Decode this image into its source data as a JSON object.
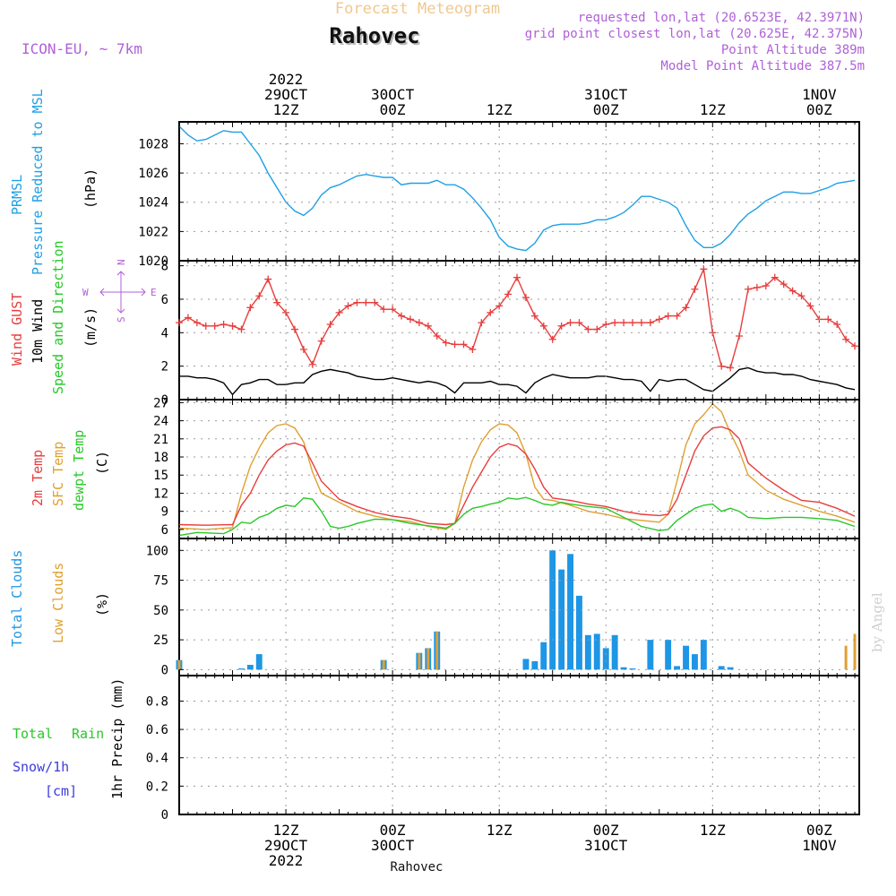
{
  "header": {
    "title": "Forecast Meteogram",
    "location": "Rahovec",
    "model": "ICON-EU, ~ 7km",
    "requested": "requested lon,lat (20.6523E, 42.3971N)",
    "grid_point": "grid point closest lon,lat (20.625E, 42.375N)",
    "point_altitude": "Point Altitude 389m",
    "model_altitude": "Model Point Altitude 387.5m",
    "footer_location": "Rahovec",
    "credit": "by Angel"
  },
  "colors": {
    "pressure": "#1ea0e6",
    "gust": "#e83c3c",
    "wind": "#000000",
    "t2m": "#e83c3c",
    "sfc": "#e0a030",
    "dewpt": "#28c828",
    "total_clouds": "#1e96e6",
    "low_clouds": "#e0a030",
    "rain": "#28c828",
    "snow": "#3c3cdc",
    "meta": "#b060d8"
  },
  "time_axis": {
    "top_labels": [
      {
        "t": 12,
        "lines": [
          "2022",
          "29OCT",
          "12Z"
        ]
      },
      {
        "t": 24,
        "lines": [
          "30OCT",
          "00Z"
        ]
      },
      {
        "t": 36,
        "lines": [
          "12Z"
        ]
      },
      {
        "t": 48,
        "lines": [
          "31OCT",
          "00Z"
        ]
      },
      {
        "t": 60,
        "lines": [
          "12Z"
        ]
      },
      {
        "t": 72,
        "lines": [
          "1NOV",
          "00Z"
        ]
      }
    ],
    "bottom_labels": [
      {
        "t": 12,
        "lines": [
          "12Z",
          "29OCT",
          "2022"
        ]
      },
      {
        "t": 24,
        "lines": [
          "00Z",
          "30OCT"
        ]
      },
      {
        "t": 36,
        "lines": [
          "12Z"
        ]
      },
      {
        "t": 48,
        "lines": [
          "00Z",
          "31OCT"
        ]
      },
      {
        "t": 60,
        "lines": [
          "12Z"
        ]
      },
      {
        "t": 72,
        "lines": [
          "00Z",
          "1NOV"
        ]
      }
    ]
  },
  "panel_labels": {
    "pressure": [
      "PRMSL",
      "Pressure Reduced to MSL",
      "(hPa)"
    ],
    "wind": [
      "Wind GUST",
      "10m Wind",
      "Speed and Direction",
      "(m/s)"
    ],
    "compass": [
      "W",
      "E",
      "N",
      "S"
    ],
    "temp": [
      "2m Temp",
      "SFC Temp",
      "dewpt Temp",
      "(C)"
    ],
    "clouds": [
      "Total Clouds",
      "Low Clouds",
      "(%)"
    ],
    "precip": [
      "Total",
      "Rain",
      "Snow/1h",
      "[cm]",
      "1hr Precip (mm)"
    ]
  },
  "chart_data": [
    {
      "type": "line",
      "title": "PRMSL Pressure Reduced to MSL",
      "ylabel": "(hPa)",
      "x_unit": "hours from 29OCT 00Z",
      "ylim": [
        1020,
        1029.5
      ],
      "yticks": [
        1020,
        1022,
        1024,
        1026,
        1028
      ],
      "series": [
        {
          "name": "PRMSL",
          "x": [
            0,
            1,
            2,
            3,
            4,
            5,
            6,
            7,
            8,
            9,
            10,
            11,
            12,
            13,
            14,
            15,
            16,
            17,
            18,
            19,
            20,
            21,
            22,
            23,
            24,
            25,
            26,
            27,
            28,
            29,
            30,
            31,
            32,
            33,
            34,
            35,
            36,
            37,
            38,
            39,
            40,
            41,
            42,
            43,
            44,
            45,
            46,
            47,
            48,
            49,
            50,
            51,
            52,
            53,
            54,
            55,
            56,
            57,
            58,
            59,
            60,
            61,
            62,
            63,
            64,
            65,
            66,
            67,
            68,
            69,
            70,
            71,
            72,
            73,
            74,
            75,
            76
          ],
          "values": [
            1029.2,
            1028.6,
            1028.2,
            1028.3,
            1028.6,
            1028.9,
            1028.8,
            1028.8,
            1028.0,
            1027.2,
            1026.0,
            1025.0,
            1024.0,
            1023.4,
            1023.1,
            1023.6,
            1024.5,
            1025.0,
            1025.2,
            1025.5,
            1025.8,
            1025.9,
            1025.8,
            1025.7,
            1025.7,
            1025.2,
            1025.3,
            1025.3,
            1025.3,
            1025.5,
            1025.2,
            1025.2,
            1024.9,
            1024.3,
            1023.6,
            1022.8,
            1021.6,
            1021.0,
            1020.8,
            1020.7,
            1021.2,
            1022.1,
            1022.4,
            1022.5,
            1022.5,
            1022.5,
            1022.6,
            1022.8,
            1022.8,
            1023.0,
            1023.3,
            1023.8,
            1024.4,
            1024.4,
            1024.2,
            1024.0,
            1023.6,
            1022.4,
            1021.4,
            1020.9,
            1020.9,
            1021.2,
            1021.8,
            1022.6,
            1023.2,
            1023.6,
            1024.1,
            1024.4,
            1024.7,
            1024.7,
            1024.6,
            1024.6,
            1024.8,
            1025.0,
            1025.3,
            1025.4,
            1025.5
          ]
        }
      ]
    },
    {
      "type": "line",
      "title": "Wind GUST / 10m Wind Speed and Direction",
      "ylabel": "(m/s)",
      "ylim": [
        0,
        8.3
      ],
      "yticks": [
        0,
        2,
        4,
        6,
        8
      ],
      "series": [
        {
          "name": "Wind GUST",
          "x": [
            0,
            1,
            2,
            3,
            4,
            5,
            6,
            7,
            8,
            9,
            10,
            11,
            12,
            13,
            14,
            15,
            16,
            17,
            18,
            19,
            20,
            21,
            22,
            23,
            24,
            25,
            26,
            27,
            28,
            29,
            30,
            31,
            32,
            33,
            34,
            35,
            36,
            37,
            38,
            39,
            40,
            41,
            42,
            43,
            44,
            45,
            46,
            47,
            48,
            49,
            50,
            51,
            52,
            53,
            54,
            55,
            56,
            57,
            58,
            59,
            60,
            61,
            62,
            63,
            64,
            65,
            66,
            67,
            68,
            69,
            70,
            71,
            72,
            73,
            74,
            75,
            76
          ],
          "values": [
            4.6,
            4.9,
            4.6,
            4.4,
            4.4,
            4.5,
            4.4,
            4.2,
            5.5,
            6.2,
            7.2,
            5.8,
            5.2,
            4.2,
            3.0,
            2.1,
            3.5,
            4.5,
            5.2,
            5.6,
            5.8,
            5.8,
            5.8,
            5.4,
            5.4,
            5.0,
            4.8,
            4.6,
            4.4,
            3.8,
            3.4,
            3.3,
            3.3,
            3.0,
            4.6,
            5.2,
            5.6,
            6.3,
            7.3,
            6.1,
            5.0,
            4.4,
            3.6,
            4.4,
            4.6,
            4.6,
            4.2,
            4.2,
            4.5,
            4.6,
            4.6,
            4.6,
            4.6,
            4.6,
            4.8,
            5.0,
            5.0,
            5.5,
            6.6,
            7.8,
            4.0,
            2.0,
            1.9,
            3.8,
            6.6,
            6.7,
            6.8,
            7.3,
            6.9,
            6.5,
            6.2,
            5.6,
            4.8,
            4.8,
            4.5,
            3.6,
            3.2
          ]
        },
        {
          "name": "10m Wind",
          "x": [
            0,
            1,
            2,
            3,
            4,
            5,
            6,
            7,
            8,
            9,
            10,
            11,
            12,
            13,
            14,
            15,
            16,
            17,
            18,
            19,
            20,
            21,
            22,
            23,
            24,
            25,
            26,
            27,
            28,
            29,
            30,
            31,
            32,
            33,
            34,
            35,
            36,
            37,
            38,
            39,
            40,
            41,
            42,
            43,
            44,
            45,
            46,
            47,
            48,
            49,
            50,
            51,
            52,
            53,
            54,
            55,
            56,
            57,
            58,
            59,
            60,
            61,
            62,
            63,
            64,
            65,
            66,
            67,
            68,
            69,
            70,
            71,
            72,
            73,
            74,
            75,
            76
          ],
          "values": [
            1.4,
            1.4,
            1.3,
            1.3,
            1.2,
            1.0,
            0.3,
            0.9,
            1.0,
            1.2,
            1.2,
            0.9,
            0.9,
            1.0,
            1.0,
            1.5,
            1.7,
            1.8,
            1.7,
            1.6,
            1.4,
            1.3,
            1.2,
            1.2,
            1.3,
            1.2,
            1.1,
            1.0,
            1.1,
            1.0,
            0.8,
            0.4,
            1.0,
            1.0,
            1.0,
            1.1,
            0.9,
            0.9,
            0.8,
            0.4,
            1.0,
            1.3,
            1.5,
            1.4,
            1.3,
            1.3,
            1.3,
            1.4,
            1.4,
            1.3,
            1.2,
            1.2,
            1.1,
            0.5,
            1.2,
            1.1,
            1.2,
            1.2,
            0.9,
            0.6,
            0.5,
            0.9,
            1.3,
            1.8,
            1.9,
            1.7,
            1.6,
            1.6,
            1.5,
            1.5,
            1.4,
            1.2,
            1.1,
            1.0,
            0.9,
            0.7,
            0.6
          ]
        }
      ]
    },
    {
      "type": "line",
      "title": "2m Temp / SFC Temp / dewpt Temp",
      "ylabel": "(C)",
      "ylim": [
        4.5,
        27.5
      ],
      "yticks": [
        6,
        9,
        12,
        15,
        18,
        21,
        24,
        27
      ],
      "series": [
        {
          "name": "2m Temp",
          "x": [
            0,
            3,
            6,
            7,
            8,
            9,
            10,
            11,
            12,
            13,
            14,
            15,
            16,
            18,
            20,
            22,
            24,
            26,
            28,
            30,
            31,
            32,
            33,
            34,
            35,
            36,
            37,
            38,
            39,
            40,
            41,
            42,
            44,
            46,
            48,
            50,
            52,
            54,
            55,
            56,
            57,
            58,
            59,
            60,
            61,
            62,
            63,
            64,
            66,
            68,
            70,
            72,
            74,
            76
          ],
          "values": [
            6.8,
            6.7,
            6.8,
            10.0,
            12.0,
            15.0,
            17.5,
            19.0,
            20.0,
            20.3,
            19.8,
            17.0,
            14.0,
            11.0,
            9.8,
            8.8,
            8.2,
            7.8,
            7.0,
            6.8,
            7.0,
            10.0,
            13.0,
            15.5,
            18.0,
            19.6,
            20.2,
            19.8,
            18.5,
            16.0,
            13.0,
            11.2,
            10.8,
            10.2,
            9.8,
            9.0,
            8.5,
            8.3,
            8.5,
            11.0,
            15.0,
            19.0,
            21.5,
            22.8,
            23.0,
            22.5,
            21.0,
            17.0,
            14.5,
            12.5,
            10.8,
            10.5,
            9.5,
            8.2
          ]
        },
        {
          "name": "SFC Temp",
          "x": [
            0,
            3,
            6,
            7,
            8,
            9,
            10,
            11,
            12,
            13,
            14,
            15,
            16,
            18,
            20,
            22,
            24,
            26,
            28,
            30,
            31,
            32,
            33,
            34,
            35,
            36,
            37,
            38,
            39,
            40,
            41,
            42,
            44,
            46,
            48,
            50,
            52,
            54,
            55,
            56,
            57,
            58,
            59,
            60,
            61,
            62,
            63,
            64,
            66,
            68,
            70,
            72,
            74,
            76
          ],
          "values": [
            6.2,
            6.0,
            6.3,
            12.0,
            16.5,
            19.5,
            22.0,
            23.2,
            23.5,
            22.8,
            20.5,
            15.5,
            12.0,
            10.5,
            9.0,
            8.2,
            7.6,
            7.3,
            6.5,
            6.0,
            7.0,
            13.0,
            17.5,
            20.5,
            22.5,
            23.5,
            23.3,
            22.0,
            18.5,
            13.0,
            11.0,
            10.8,
            10.0,
            9.0,
            8.5,
            7.8,
            7.5,
            7.2,
            8.5,
            14.0,
            20.0,
            23.5,
            25.0,
            26.8,
            25.5,
            22.0,
            19.0,
            15.0,
            12.5,
            11.0,
            10.0,
            9.0,
            8.2,
            7.2
          ]
        },
        {
          "name": "dewpt Temp",
          "x": [
            0,
            2,
            5,
            6,
            7,
            8,
            9,
            10,
            11,
            12,
            13,
            14,
            15,
            16,
            17,
            18,
            19,
            20,
            22,
            24,
            26,
            28,
            30,
            31,
            32,
            33,
            34,
            35,
            36,
            37,
            38,
            39,
            40,
            41,
            42,
            43,
            44,
            46,
            48,
            50,
            52,
            54,
            55,
            56,
            57,
            58,
            59,
            60,
            61,
            62,
            63,
            64,
            66,
            68,
            70,
            72,
            74,
            76
          ],
          "values": [
            5.0,
            5.5,
            5.3,
            6.0,
            7.2,
            7.0,
            8.0,
            8.5,
            9.5,
            10.0,
            9.8,
            11.2,
            11.0,
            9.0,
            6.5,
            6.2,
            6.5,
            7.0,
            7.7,
            7.6,
            7.0,
            6.6,
            6.2,
            7.0,
            8.5,
            9.5,
            9.8,
            10.2,
            10.5,
            11.2,
            11.0,
            11.3,
            10.8,
            10.2,
            10.0,
            10.5,
            10.2,
            9.8,
            9.5,
            8.0,
            6.5,
            5.8,
            6.0,
            7.5,
            8.5,
            9.5,
            10.0,
            10.2,
            9.0,
            9.5,
            9.0,
            8.0,
            7.8,
            8.0,
            8.0,
            7.8,
            7.5,
            6.5
          ]
        }
      ]
    },
    {
      "type": "bar",
      "title": "Total Clouds / Low Clouds",
      "ylabel": "(%)",
      "ylim": [
        -5,
        110
      ],
      "yticks": [
        0,
        25,
        50,
        75,
        100
      ],
      "series": [
        {
          "name": "Total Clouds",
          "x": [
            0,
            7,
            8,
            9,
            23,
            27,
            28,
            29,
            39,
            40,
            41,
            42,
            43,
            44,
            45,
            46,
            47,
            48,
            49,
            50,
            51,
            53,
            55,
            56,
            57,
            58,
            59,
            61,
            62
          ],
          "values": [
            8,
            1,
            4,
            13,
            8,
            14,
            18,
            32,
            9,
            7,
            23,
            100,
            84,
            97,
            62,
            29,
            30,
            18,
            29,
            2,
            1,
            25,
            25,
            3,
            20,
            13,
            25,
            3,
            2
          ]
        },
        {
          "name": "Low Clouds",
          "x": [
            0,
            23,
            27,
            28,
            29,
            75,
            76
          ],
          "values": [
            8,
            8,
            14,
            18,
            32,
            20,
            30
          ]
        }
      ]
    },
    {
      "type": "line",
      "title": "Total Rain / Snow/1h",
      "ylabel": "1hr Precip (mm)",
      "ylim": [
        0,
        0.98
      ],
      "yticks": [
        0,
        0.2,
        0.4,
        0.6,
        0.8
      ],
      "series": [
        {
          "name": "Total Rain",
          "x": [
            0,
            76
          ],
          "values": [
            0,
            0
          ]
        }
      ]
    }
  ]
}
